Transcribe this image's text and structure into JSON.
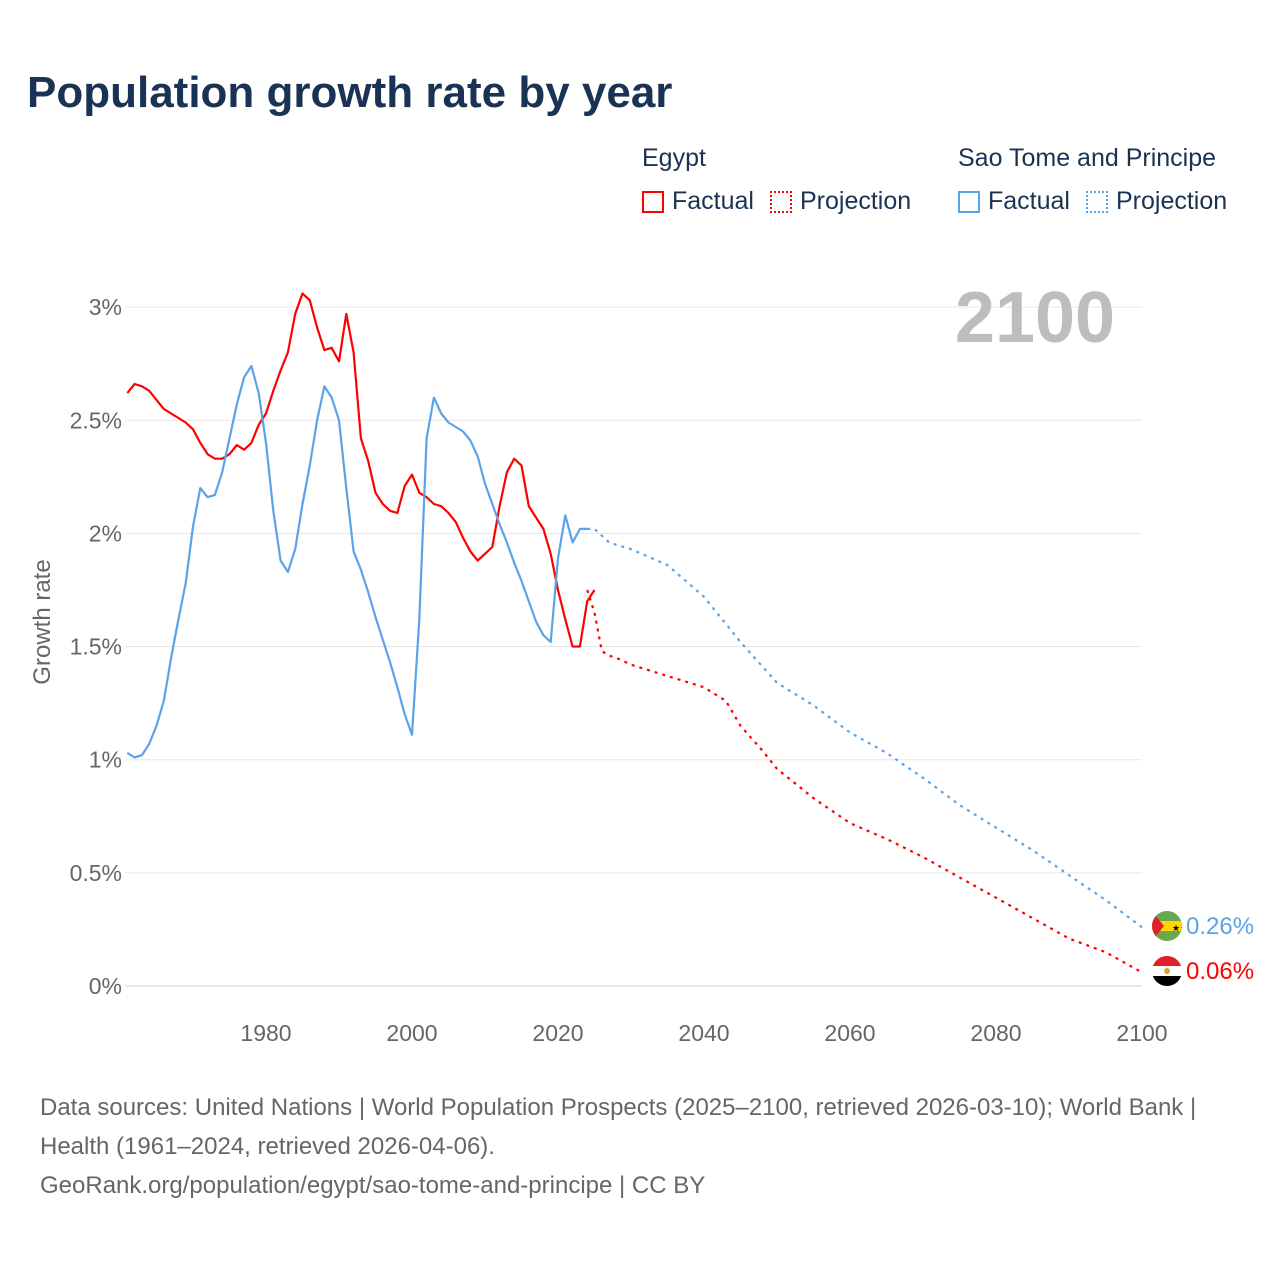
{
  "title": "Population growth rate by year",
  "legend": {
    "groups": [
      {
        "name": "Egypt",
        "color": "#ff0000",
        "items": [
          "Factual",
          "Projection"
        ]
      },
      {
        "name": "Sao Tome and Principe",
        "color": "#5ba3e8",
        "items": [
          "Factual",
          "Projection"
        ]
      }
    ]
  },
  "year_label": "2100",
  "end_labels": {
    "sao_tome": "0.26%",
    "egypt": "0.06%"
  },
  "sources": "Data sources: United Nations | World Population Prospects (2025–2100, retrieved 2026-03-10); World Bank | Health (1961–2024, retrieved 2026-04-06).",
  "credit": "GeoRank.org/population/egypt/sao-tome-and-principe | CC BY",
  "chart_data": {
    "type": "line",
    "title": "Population growth rate by year",
    "xlabel": "",
    "ylabel": "Growth rate",
    "xlim": [
      1961,
      2100
    ],
    "ylim": [
      0,
      3
    ],
    "x_ticks": [
      1980,
      2000,
      2020,
      2040,
      2060,
      2080,
      2100
    ],
    "y_ticks": [
      {
        "v": 0,
        "label": "0%"
      },
      {
        "v": 0.5,
        "label": "0.5%"
      },
      {
        "v": 1,
        "label": "1%"
      },
      {
        "v": 1.5,
        "label": "1.5%"
      },
      {
        "v": 2,
        "label": "2%"
      },
      {
        "v": 2.5,
        "label": "2.5%"
      },
      {
        "v": 3,
        "label": "3%"
      }
    ],
    "grid": true,
    "series": [
      {
        "name": "Egypt Factual",
        "color": "#ff0000",
        "dashed": false,
        "start": 1961,
        "values": [
          2.62,
          2.66,
          2.65,
          2.63,
          2.59,
          2.55,
          2.53,
          2.51,
          2.49,
          2.46,
          2.4,
          2.35,
          2.33,
          2.33,
          2.35,
          2.39,
          2.37,
          2.4,
          2.48,
          2.53,
          2.63,
          2.72,
          2.8,
          2.97,
          3.06,
          3.03,
          2.91,
          2.81,
          2.82,
          2.76,
          2.97,
          2.8,
          2.42,
          2.32,
          2.18,
          2.13,
          2.1,
          2.09,
          2.21,
          2.26,
          2.18,
          2.16,
          2.13,
          2.12,
          2.09,
          2.05,
          1.98,
          1.92,
          1.88,
          1.91,
          1.94,
          2.12,
          2.27,
          2.33,
          2.3,
          2.12,
          2.07,
          2.02,
          1.91,
          1.75,
          1.62,
          1.5,
          1.5,
          1.7,
          1.75
        ]
      },
      {
        "name": "Egypt Projection",
        "color": "#ff0000",
        "dashed": true,
        "x": [
          2024,
          2025,
          2026,
          2027,
          2028,
          2030,
          2035,
          2040,
          2043,
          2045,
          2048,
          2050,
          2055,
          2060,
          2065,
          2070,
          2075,
          2080,
          2085,
          2090,
          2095,
          2100
        ],
        "values": [
          1.75,
          1.65,
          1.48,
          1.46,
          1.45,
          1.42,
          1.37,
          1.32,
          1.26,
          1.15,
          1.04,
          0.96,
          0.83,
          0.72,
          0.65,
          0.57,
          0.48,
          0.39,
          0.3,
          0.21,
          0.15,
          0.06
        ]
      },
      {
        "name": "Sao Tome and Principe Factual",
        "color": "#5ba3e8",
        "dashed": false,
        "start": 1961,
        "values": [
          1.03,
          1.01,
          1.02,
          1.07,
          1.15,
          1.26,
          1.45,
          1.62,
          1.78,
          2.03,
          2.2,
          2.16,
          2.17,
          2.27,
          2.42,
          2.57,
          2.69,
          2.74,
          2.62,
          2.4,
          2.1,
          1.88,
          1.83,
          1.93,
          2.13,
          2.3,
          2.5,
          2.65,
          2.6,
          2.5,
          2.2,
          1.92,
          1.84,
          1.74,
          1.63,
          1.53,
          1.43,
          1.32,
          1.2,
          1.11,
          1.62,
          2.42,
          2.6,
          2.53,
          2.49,
          2.47,
          2.45,
          2.41,
          2.34,
          2.22,
          2.13,
          2.04,
          1.96,
          1.87,
          1.79,
          1.7,
          1.61,
          1.55,
          1.52,
          1.89,
          2.08,
          1.96,
          2.02,
          2.02
        ]
      },
      {
        "name": "Sao Tome and Principe Projection",
        "color": "#5ba3e8",
        "dashed": true,
        "x": [
          2024,
          2025,
          2026,
          2027,
          2030,
          2035,
          2040,
          2045,
          2050,
          2055,
          2060,
          2065,
          2070,
          2075,
          2080,
          2085,
          2090,
          2095,
          2100
        ],
        "values": [
          2.02,
          2.02,
          1.99,
          1.96,
          1.93,
          1.86,
          1.72,
          1.52,
          1.34,
          1.24,
          1.12,
          1.03,
          0.92,
          0.8,
          0.7,
          0.6,
          0.49,
          0.38,
          0.26
        ]
      }
    ]
  }
}
